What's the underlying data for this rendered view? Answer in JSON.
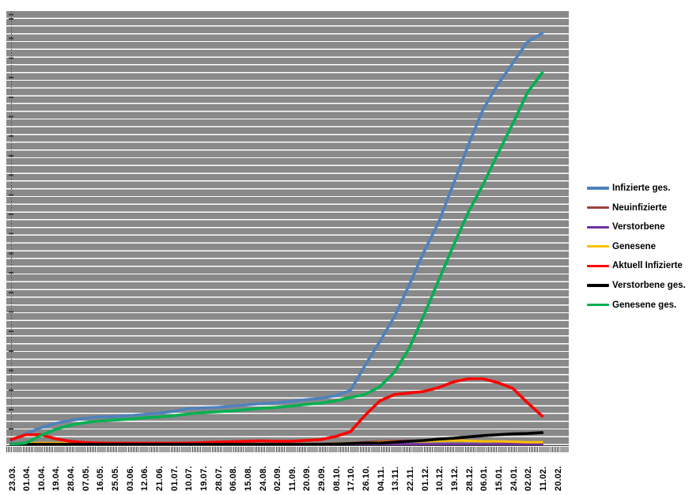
{
  "chart": {
    "type": "line",
    "title": "",
    "page_background": "#ffffff",
    "plot": {
      "background_color": "#898989",
      "stripe_gridline_color": "#ffffff",
      "axis_color": "#333333"
    },
    "y_axis": {
      "labels_visible": false,
      "note": "no value labels shown; series values given as percent of plot height (0 = baseline, 100 = plot top)"
    },
    "x_axis": {
      "minor_ticks": "daily",
      "labels": [
        "23.03.",
        "01.04.",
        "10.04.",
        "19.04.",
        "28.04.",
        "07.05.",
        "16.05.",
        "25.05.",
        "03.06.",
        "12.06.",
        "21.06.",
        "01.07.",
        "10.07.",
        "19.07.",
        "28.07.",
        "06.08.",
        "15.08.",
        "24.08.",
        "02.09.",
        "11.09.",
        "20.09.",
        "29.09.",
        "08.10.",
        "17.10.",
        "26.10.",
        "04.11.",
        "13.11.",
        "22.11.",
        "01.12.",
        "10.12.",
        "19.12.",
        "28.12.",
        "06.01.",
        "15.01.",
        "24.01.",
        "02.02.",
        "11.02.",
        "20.02."
      ]
    },
    "legend": {
      "position": "right"
    },
    "series": [
      {
        "id": "infizierte-ges",
        "name": "Infizierte ges.",
        "color": "#4F81BD",
        "values_pct_of_plot_height": [
          1.1,
          2.6,
          4.0,
          5.0,
          5.7,
          6.2,
          6.5,
          6.6,
          6.8,
          7.1,
          7.4,
          7.8,
          8.4,
          8.6,
          8.7,
          9.0,
          9.3,
          9.6,
          9.8,
          10.1,
          10.5,
          10.8,
          11.4,
          12.6,
          18.4,
          23.9,
          29.7,
          37.0,
          44.6,
          51.5,
          60.3,
          69.2,
          77.4,
          83.1,
          88.0,
          92.9,
          94.9,
          null
        ]
      },
      {
        "id": "neuinfizierte",
        "name": "Neuinfizierte",
        "color": "#9E413E",
        "values_pct_of_plot_height": [
          0.3,
          0.4,
          0.4,
          0.3,
          0.2,
          0.2,
          0.2,
          0.2,
          0.2,
          0.2,
          0.2,
          0.2,
          0.2,
          0.2,
          0.2,
          0.2,
          0.2,
          0.2,
          0.2,
          0.2,
          0.2,
          0.3,
          0.4,
          0.5,
          0.7,
          0.9,
          1.0,
          1.0,
          1.0,
          1.1,
          1.1,
          1.0,
          0.9,
          0.8,
          0.7,
          0.6,
          0.5,
          null
        ]
      },
      {
        "id": "verstorbene",
        "name": "Verstorbene",
        "color": "#7030A0",
        "values_pct_of_plot_height": [
          0.1,
          0.1,
          0.1,
          0.1,
          0.1,
          0.1,
          0.1,
          0.1,
          0.1,
          0.1,
          0.1,
          0.1,
          0.1,
          0.1,
          0.1,
          0.1,
          0.1,
          0.1,
          0.1,
          0.1,
          0.1,
          0.1,
          0.1,
          0.1,
          0.2,
          0.2,
          0.2,
          0.2,
          0.2,
          0.2,
          0.2,
          0.2,
          0.2,
          0.2,
          0.2,
          0.2,
          0.2,
          null
        ]
      },
      {
        "id": "genesene",
        "name": "Genesene",
        "color": "#FFC000",
        "values_pct_of_plot_height": [
          0.1,
          0.4,
          0.5,
          0.5,
          0.4,
          0.3,
          0.2,
          0.2,
          0.2,
          0.2,
          0.2,
          0.2,
          0.2,
          0.2,
          0.2,
          0.2,
          0.2,
          0.2,
          0.2,
          0.2,
          0.2,
          0.2,
          0.4,
          0.5,
          0.5,
          0.7,
          0.8,
          0.9,
          0.9,
          1.0,
          1.1,
          1.0,
          0.9,
          0.9,
          0.8,
          0.7,
          0.7,
          null
        ]
      },
      {
        "id": "aktuell-infizierte",
        "name": "Aktuell Infizierte",
        "color": "#FF0000",
        "values_pct_of_plot_height": [
          1.3,
          2.4,
          2.4,
          1.5,
          0.9,
          0.6,
          0.5,
          0.45,
          0.45,
          0.45,
          0.45,
          0.45,
          0.5,
          0.6,
          0.7,
          0.8,
          0.9,
          1.0,
          0.9,
          0.9,
          1.1,
          1.3,
          2.0,
          3.1,
          6.9,
          10.2,
          11.7,
          12.0,
          12.4,
          13.3,
          14.6,
          15.3,
          15.3,
          14.4,
          13.1,
          9.8,
          6.7,
          null
        ]
      },
      {
        "id": "verstorbene-ges",
        "name": "Verstorbene ges.",
        "color": "#000000",
        "values_pct_of_plot_height": [
          0.2,
          0.2,
          0.2,
          0.2,
          0.2,
          0.2,
          0.2,
          0.2,
          0.2,
          0.2,
          0.2,
          0.2,
          0.2,
          0.2,
          0.2,
          0.2,
          0.2,
          0.2,
          0.2,
          0.2,
          0.2,
          0.2,
          0.3,
          0.4,
          0.5,
          0.5,
          0.7,
          0.9,
          1.1,
          1.4,
          1.6,
          1.9,
          2.2,
          2.4,
          2.6,
          2.7,
          2.9,
          null
        ]
      },
      {
        "id": "genesene-ges",
        "name": "Genesene ges.",
        "color": "#00B050",
        "values_pct_of_plot_height": [
          0.2,
          0.5,
          2.2,
          3.6,
          4.6,
          5.2,
          5.6,
          5.8,
          6.0,
          6.3,
          6.5,
          6.8,
          7.2,
          7.5,
          7.7,
          7.9,
          8.2,
          8.5,
          8.7,
          9.0,
          9.4,
          9.7,
          10.2,
          11.0,
          11.7,
          13.5,
          16.9,
          22.4,
          30.1,
          38.1,
          46.1,
          53.7,
          60.1,
          67.2,
          74.0,
          81.2,
          85.8,
          null
        ]
      }
    ]
  }
}
